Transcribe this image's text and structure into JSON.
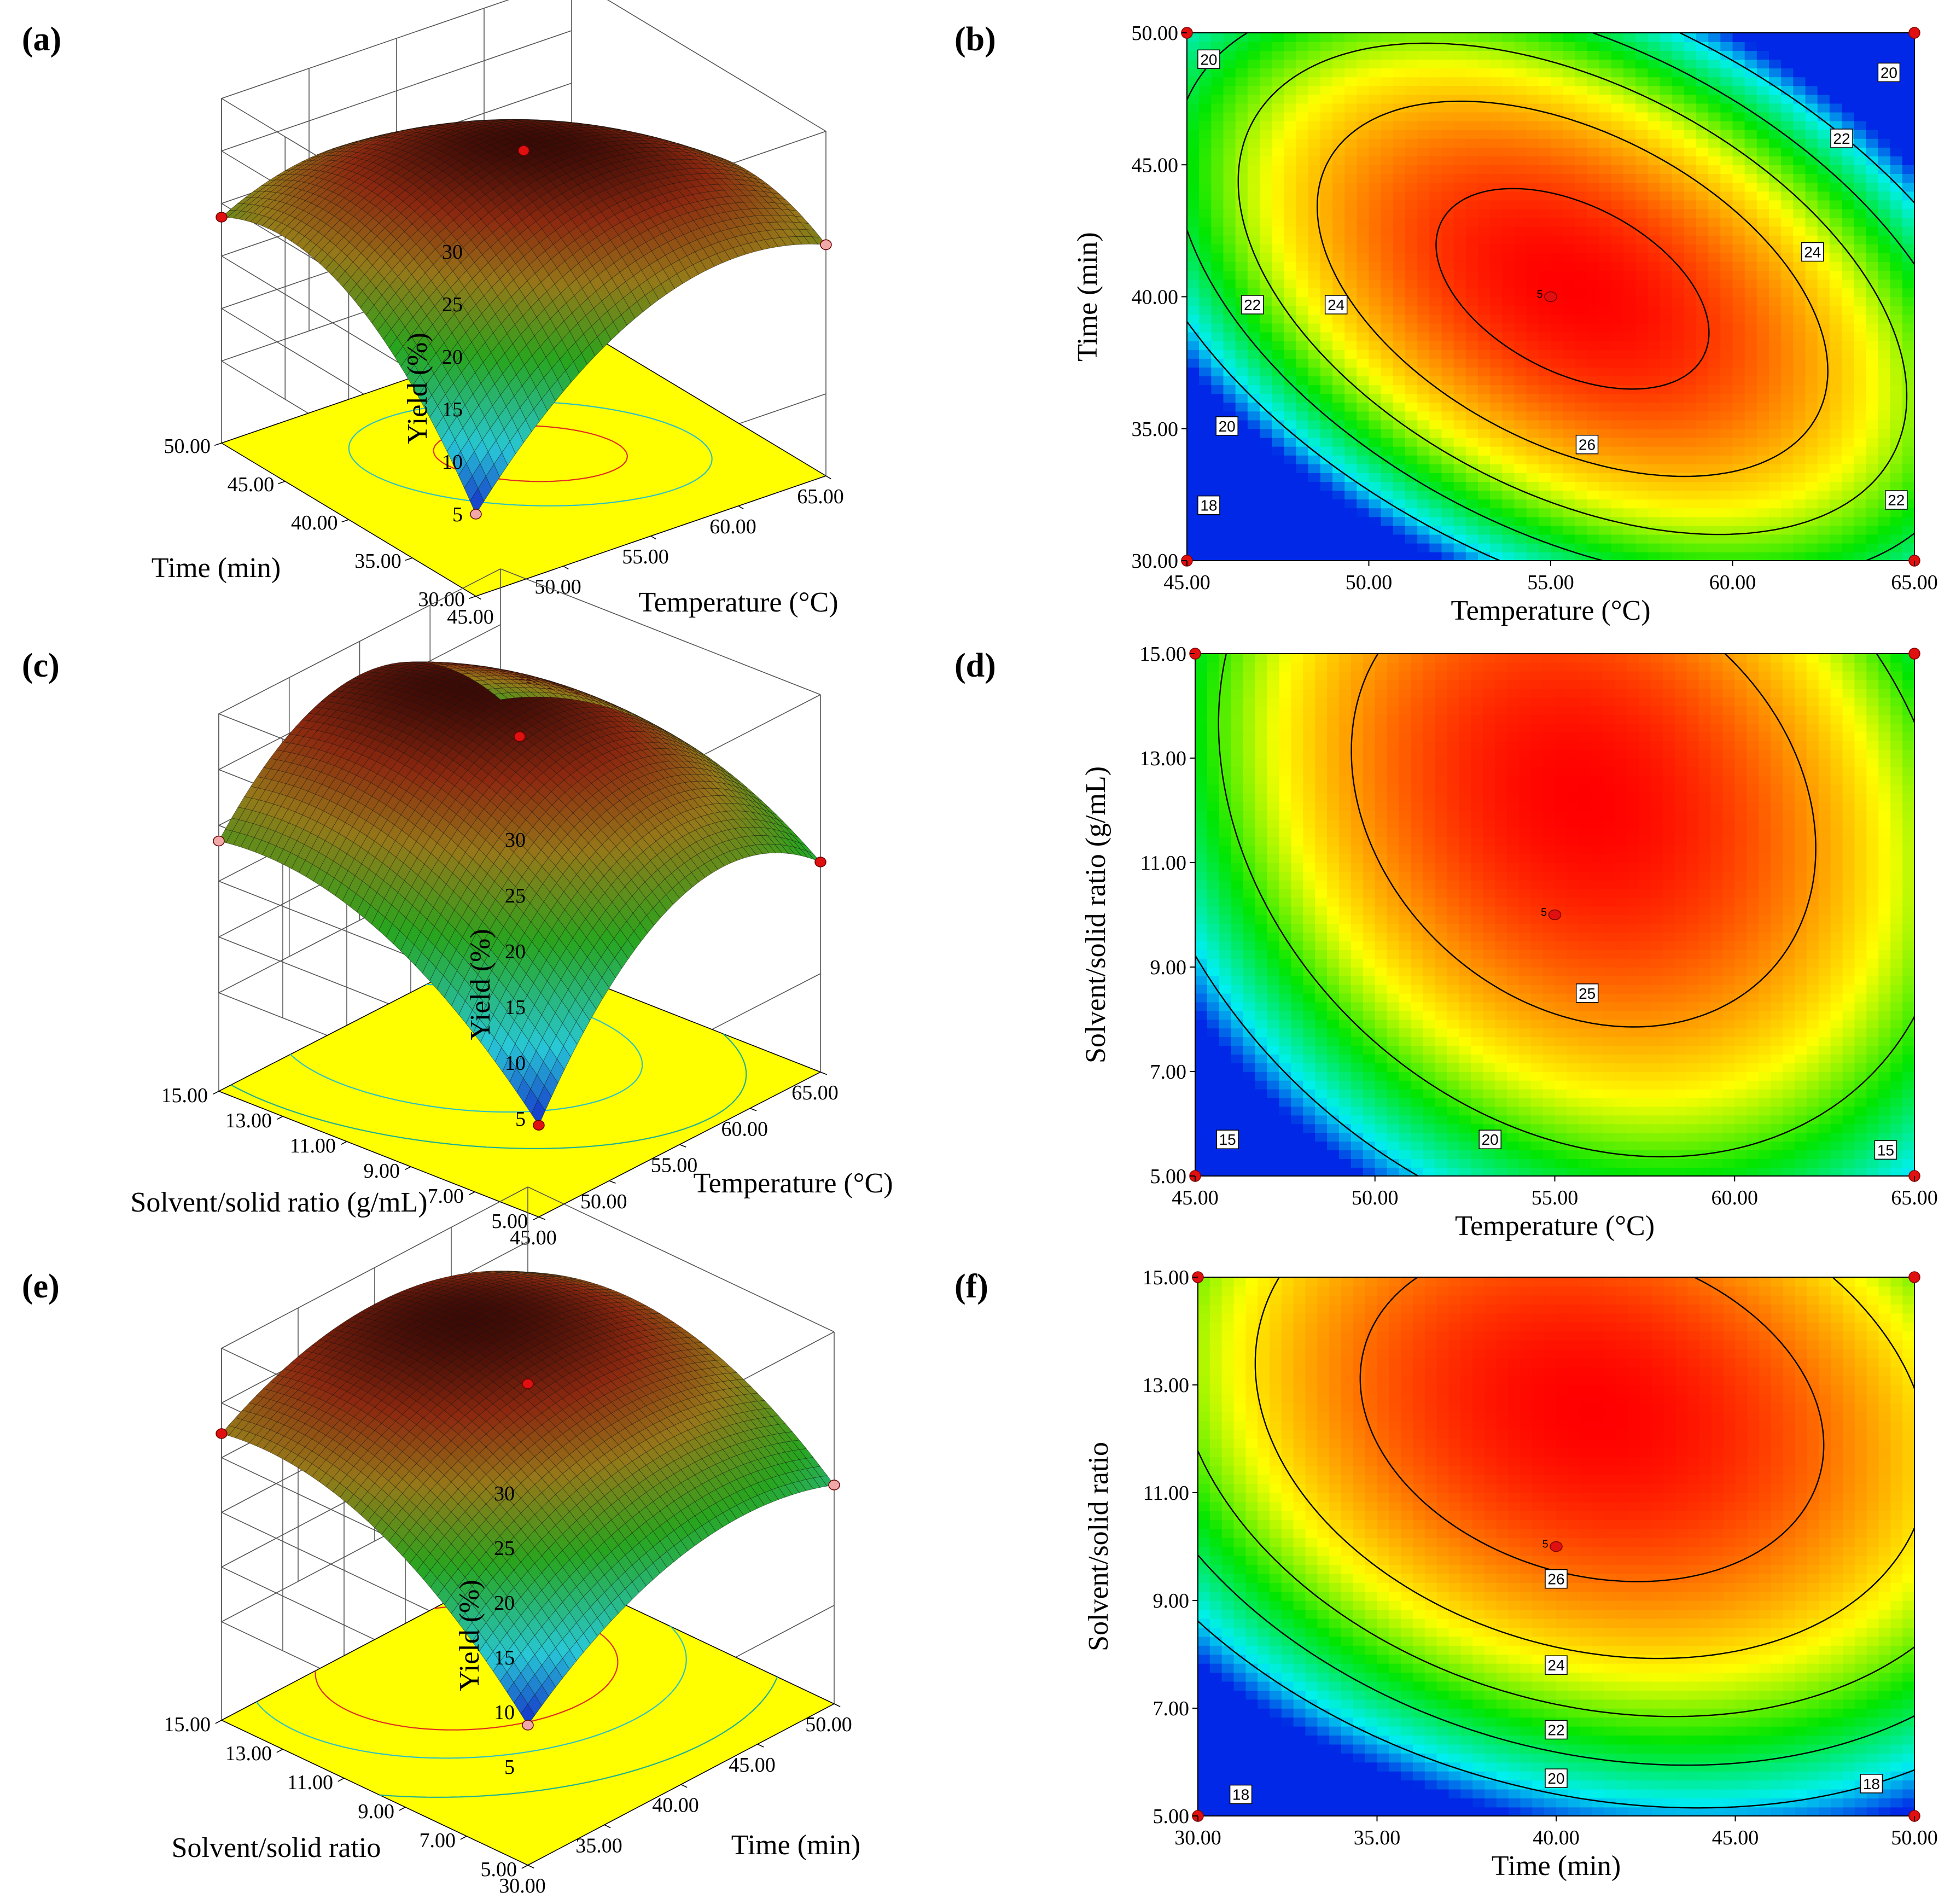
{
  "figure": {
    "panels": [
      {
        "label": "(a)"
      },
      {
        "label": "(b)"
      },
      {
        "label": "(c)"
      },
      {
        "label": "(d)"
      },
      {
        "label": "(e)"
      },
      {
        "label": "(f)"
      }
    ]
  },
  "chart_data": [
    {
      "id": "a",
      "type": "surface3d",
      "label": "(a)",
      "zlabel": "Yield (%)",
      "xlabel": "Temperature (°C)",
      "ylabel": "Time (min)",
      "zticks": [
        "5",
        "10",
        "15",
        "20",
        "25",
        "30"
      ],
      "xticks": [
        "45.00",
        "50.00",
        "55.00",
        "60.00",
        "65.00"
      ],
      "yticks": [
        "30.00",
        "35.00",
        "40.00",
        "45.00",
        "50.00"
      ],
      "xlim": [
        45,
        65
      ],
      "ylim": [
        30,
        50
      ],
      "zlim": [
        5,
        30
      ],
      "center": {
        "x": 55.6,
        "y": 40.3,
        "z": 26.8
      },
      "floor_contours": [
        24,
        26
      ],
      "design_points": [
        {
          "x": 55,
          "y": 40,
          "z": 26.6,
          "color": "#e01010"
        },
        {
          "x": 45,
          "y": 50,
          "z": 18.7,
          "color": "#e01010"
        },
        {
          "x": 65,
          "y": 30,
          "z": 19.2,
          "color": "#f0a8a8"
        },
        {
          "x": 45,
          "y": 30,
          "z": 5.0,
          "color": "#f0a8a8"
        }
      ]
    },
    {
      "id": "b",
      "type": "contour",
      "label": "(b)",
      "xlabel": "Temperature (°C)",
      "ylabel": "Time (min)",
      "xticks": [
        "45.00",
        "50.00",
        "55.00",
        "60.00",
        "65.00"
      ],
      "yticks": [
        "30.00",
        "35.00",
        "40.00",
        "45.00",
        "50.00"
      ],
      "xlim": [
        45,
        65
      ],
      "ylim": [
        30,
        50
      ],
      "levels": [
        18,
        20,
        22,
        24,
        26
      ],
      "contour_labels": [
        {
          "text": "20",
          "x": 45.6,
          "y": 49.0
        },
        {
          "text": "20",
          "x": 64.3,
          "y": 48.5
        },
        {
          "text": "22",
          "x": 63.0,
          "y": 46.0
        },
        {
          "text": "24",
          "x": 62.2,
          "y": 41.7
        },
        {
          "text": "22",
          "x": 46.8,
          "y": 39.7
        },
        {
          "text": "24",
          "x": 49.1,
          "y": 39.7
        },
        {
          "text": "20",
          "x": 46.1,
          "y": 35.1
        },
        {
          "text": "18",
          "x": 45.6,
          "y": 32.1
        },
        {
          "text": "26",
          "x": 56.0,
          "y": 34.4
        },
        {
          "text": "22",
          "x": 64.5,
          "y": 32.3
        }
      ],
      "center_point": {
        "x": 55,
        "y": 40,
        "label": "5"
      },
      "design_points": [
        {
          "x": 45,
          "y": 50
        },
        {
          "x": 65,
          "y": 50
        },
        {
          "x": 45,
          "y": 30
        },
        {
          "x": 65,
          "y": 30
        }
      ]
    },
    {
      "id": "c",
      "type": "surface3d",
      "label": "(c)",
      "zlabel": "Yield (%)",
      "xlabel": "Temperature (°C)",
      "ylabel": "Solvent/solid ratio (g/mL)",
      "zticks": [
        "5",
        "10",
        "15",
        "20",
        "25",
        "30"
      ],
      "xticks": [
        "45.00",
        "50.00",
        "55.00",
        "60.00",
        "65.00"
      ],
      "yticks": [
        "5.00",
        "7.00",
        "9.00",
        "11.00",
        "13.00",
        "15.00"
      ],
      "xlim": [
        45,
        65
      ],
      "ylim": [
        5,
        15
      ],
      "zlim": [
        5,
        30
      ],
      "center": {
        "x": 55.8,
        "y": 12.2,
        "z": 28.4
      },
      "floor_contours": [
        20,
        25
      ],
      "design_points": [
        {
          "x": 55,
          "y": 10,
          "z": 27.1,
          "color": "#e01010"
        },
        {
          "x": 45,
          "y": 15,
          "z": 18.6,
          "color": "#f0a8a8"
        },
        {
          "x": 65,
          "y": 5,
          "z": 15.0,
          "color": "#e01010"
        },
        {
          "x": 45,
          "y": 5,
          "z": 4.4,
          "color": "#e01010"
        }
      ]
    },
    {
      "id": "d",
      "type": "contour",
      "label": "(d)",
      "xlabel": "Temperature (°C)",
      "ylabel": "Solvent/solid ratio (g/mL)",
      "xticks": [
        "45.00",
        "50.00",
        "55.00",
        "60.00",
        "65.00"
      ],
      "yticks": [
        "5.00",
        "7.00",
        "9.00",
        "11.00",
        "13.00",
        "15.00"
      ],
      "xlim": [
        45,
        65
      ],
      "ylim": [
        5,
        15
      ],
      "levels": [
        15,
        20,
        25
      ],
      "contour_labels": [
        {
          "text": "25",
          "x": 55.9,
          "y": 8.5
        },
        {
          "text": "20",
          "x": 53.2,
          "y": 5.7
        },
        {
          "text": "15",
          "x": 45.9,
          "y": 5.7
        },
        {
          "text": "15",
          "x": 64.2,
          "y": 5.5
        }
      ],
      "center_point": {
        "x": 55,
        "y": 10,
        "label": "5"
      },
      "design_points": [
        {
          "x": 45,
          "y": 15
        },
        {
          "x": 65,
          "y": 15
        },
        {
          "x": 45,
          "y": 5
        },
        {
          "x": 65,
          "y": 5
        }
      ]
    },
    {
      "id": "e",
      "type": "surface3d",
      "label": "(e)",
      "zlabel": "Yield (%)",
      "xlabel": "Time (min)",
      "ylabel": "Solvent/solid ratio",
      "zticks": [
        "5",
        "10",
        "15",
        "20",
        "25",
        "30"
      ],
      "xticks": [
        "30.00",
        "35.00",
        "40.00",
        "45.00",
        "50.00"
      ],
      "yticks": [
        "5.00",
        "7.00",
        "9.00",
        "11.00",
        "13.00",
        "15.00"
      ],
      "xlim": [
        30,
        50
      ],
      "ylim": [
        5,
        15
      ],
      "zlim": [
        5,
        30
      ],
      "center": {
        "x": 41.0,
        "y": 12.5,
        "z": 27.8
      },
      "floor_contours": [
        20,
        24,
        26
      ],
      "design_points": [
        {
          "x": 40,
          "y": 10,
          "z": 26.0,
          "color": "#e01010"
        },
        {
          "x": 30,
          "y": 15,
          "z": 22.2,
          "color": "#e01010"
        },
        {
          "x": 50,
          "y": 5,
          "z": 16.0,
          "color": "#f0a8a8"
        },
        {
          "x": 30,
          "y": 5,
          "z": 8.8,
          "color": "#f0a8a8"
        }
      ]
    },
    {
      "id": "f",
      "type": "contour",
      "label": "(f)",
      "xlabel": "Time (min)",
      "ylabel": "Solvent/solid ratio",
      "xticks": [
        "30.00",
        "35.00",
        "40.00",
        "45.00",
        "50.00"
      ],
      "yticks": [
        "5.00",
        "7.00",
        "9.00",
        "11.00",
        "13.00",
        "15.00"
      ],
      "xlim": [
        30,
        50
      ],
      "ylim": [
        5,
        15
      ],
      "levels": [
        18,
        20,
        22,
        24,
        26
      ],
      "contour_labels": [
        {
          "text": "26",
          "x": 40.0,
          "y": 9.4
        },
        {
          "text": "24",
          "x": 40.0,
          "y": 7.8
        },
        {
          "text": "22",
          "x": 40.0,
          "y": 6.6
        },
        {
          "text": "20",
          "x": 40.0,
          "y": 5.7
        },
        {
          "text": "18",
          "x": 31.2,
          "y": 5.4
        },
        {
          "text": "18",
          "x": 48.8,
          "y": 5.6
        }
      ],
      "center_point": {
        "x": 40,
        "y": 10,
        "label": "5"
      },
      "design_points": [
        {
          "x": 30,
          "y": 15
        },
        {
          "x": 50,
          "y": 15
        },
        {
          "x": 30,
          "y": 5
        },
        {
          "x": 50,
          "y": 5
        }
      ]
    }
  ]
}
